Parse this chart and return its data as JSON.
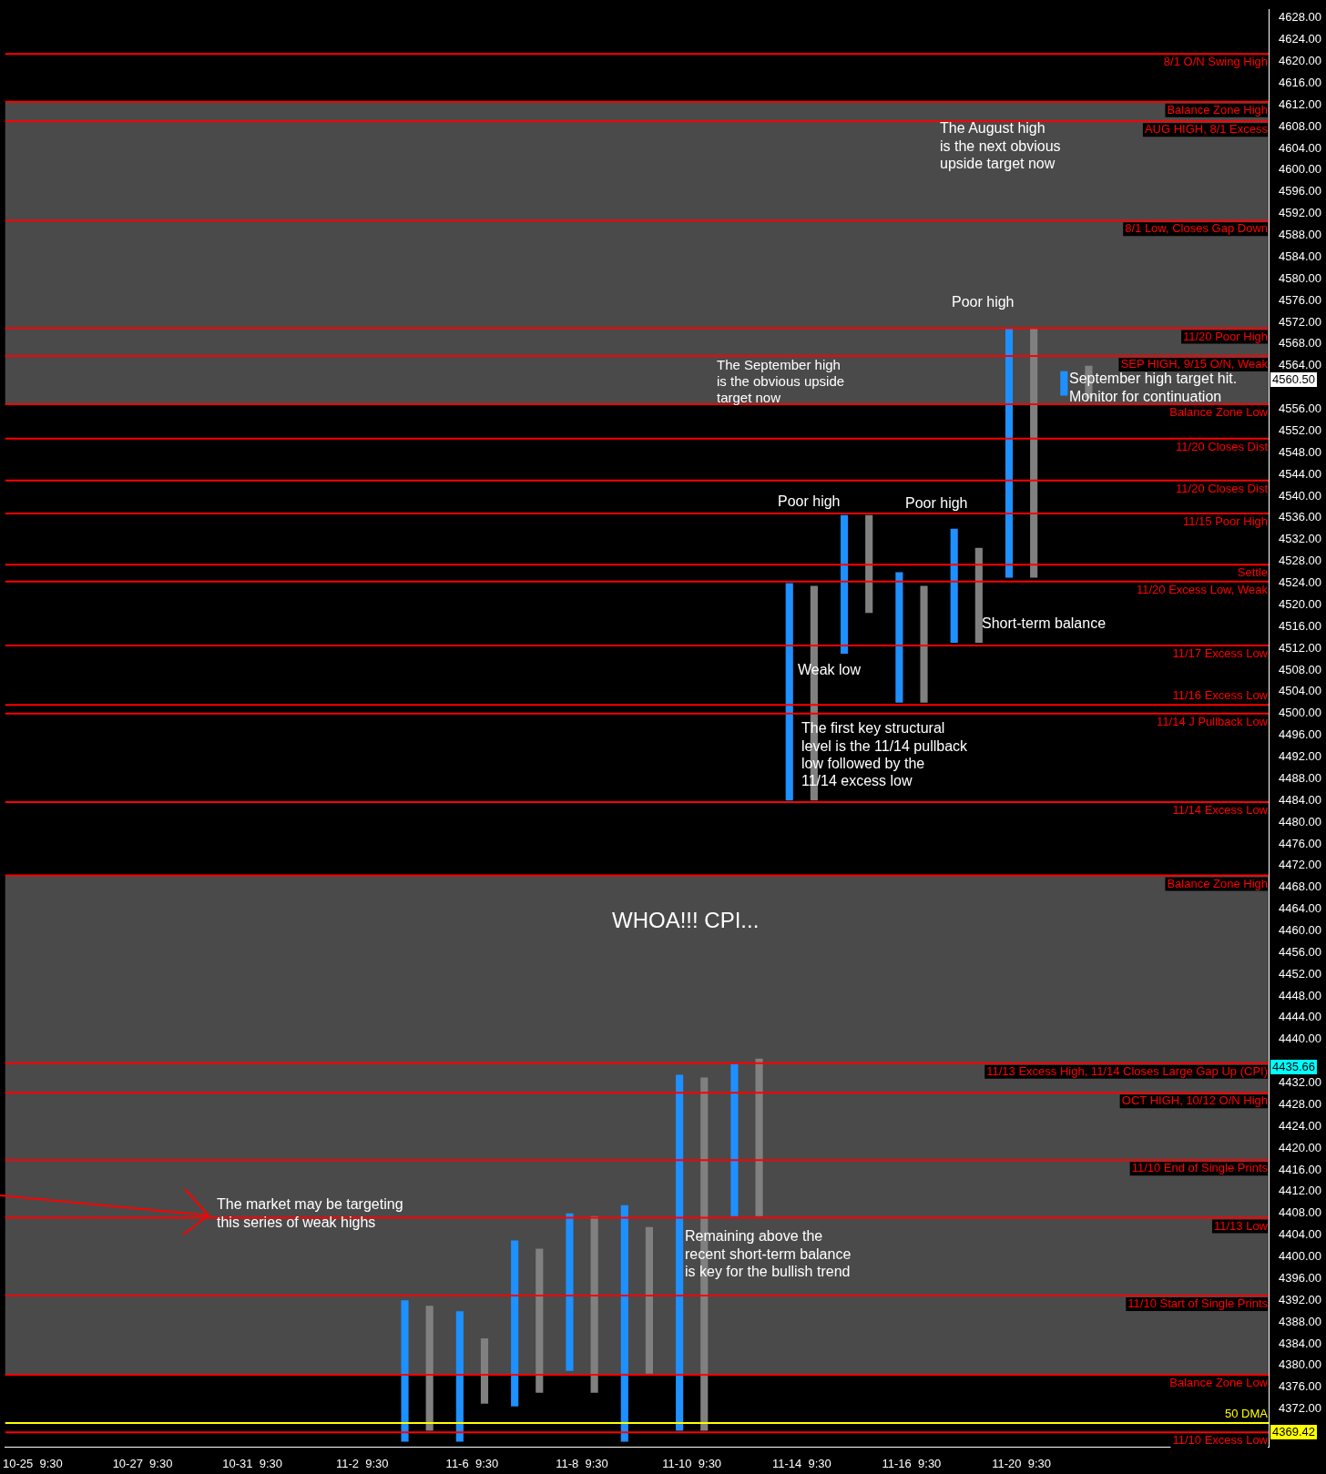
{
  "chart_data": {
    "type": "bar",
    "categories": [
      "10-25  9:30",
      null,
      "10-27  9:30",
      null,
      "10-31  9:30",
      null,
      "11-2  9:30",
      null,
      "11-6  9:30",
      null,
      "11-8  9:30",
      null,
      "11-10  9:30",
      null,
      "11-14  9:30",
      null,
      "11-16  9:30",
      null,
      "11-20  9:30",
      null,
      null,
      null,
      null
    ],
    "series": [
      {
        "color": "#1e90ff",
        "base": [
          null,
          null,
          null,
          null,
          null,
          null,
          null,
          4366,
          4366,
          4372.5,
          4379,
          4366,
          4368,
          4407.5,
          4484,
          4511,
          4502,
          4513,
          4525,
          4558.5,
          null,
          null,
          null
        ],
        "values": [
          null,
          null,
          null,
          null,
          null,
          null,
          null,
          26,
          24,
          30.5,
          29,
          43.5,
          65.5,
          28,
          40,
          25.5,
          24,
          21,
          46,
          4.5,
          null,
          null,
          null
        ]
      },
      {
        "color": "#808080",
        "base": [
          null,
          null,
          null,
          null,
          null,
          null,
          null,
          4368,
          4373,
          4375,
          4375,
          4378.5,
          4368,
          4407.5,
          4484,
          4518.5,
          4502,
          4513,
          4525,
          4558,
          null,
          null,
          null
        ],
        "values": [
          null,
          null,
          null,
          null,
          null,
          null,
          null,
          23,
          12,
          26.5,
          32.5,
          27,
          65,
          29,
          39.5,
          18,
          21.5,
          17.5,
          46,
          6,
          null,
          null,
          null
        ]
      }
    ],
    "ylim": [
      4365,
      4629.5
    ],
    "yticks": [
      {
        "value": 4372,
        "label": "4372.00"
      },
      {
        "value": 4376,
        "label": "4376.00"
      },
      {
        "value": 4380,
        "label": "4380.00"
      },
      {
        "value": 4384,
        "label": "4384.00"
      },
      {
        "value": 4388,
        "label": "4388.00"
      },
      {
        "value": 4392,
        "label": "4392.00"
      },
      {
        "value": 4396,
        "label": "4396.00"
      },
      {
        "value": 4400,
        "label": "4400.00"
      },
      {
        "value": 4404,
        "label": "4404.00"
      },
      {
        "value": 4408,
        "label": "4408.00"
      },
      {
        "value": 4412,
        "label": "4412.00"
      },
      {
        "value": 4416,
        "label": "4416.00"
      },
      {
        "value": 4420,
        "label": "4420.00"
      },
      {
        "value": 4424,
        "label": "4424.00"
      },
      {
        "value": 4428,
        "label": "4428.00"
      },
      {
        "value": 4432,
        "label": "4432.00"
      },
      {
        "value": 4440,
        "label": "4440.00"
      },
      {
        "value": 4444,
        "label": "4444.00"
      },
      {
        "value": 4448,
        "label": "4448.00"
      },
      {
        "value": 4452,
        "label": "4452.00"
      },
      {
        "value": 4456,
        "label": "4456.00"
      },
      {
        "value": 4460,
        "label": "4460.00"
      },
      {
        "value": 4464,
        "label": "4464.00"
      },
      {
        "value": 4468,
        "label": "4468.00"
      },
      {
        "value": 4472,
        "label": "4472.00"
      },
      {
        "value": 4476,
        "label": "4476.00"
      },
      {
        "value": 4480,
        "label": "4480.00"
      },
      {
        "value": 4484,
        "label": "4484.00"
      },
      {
        "value": 4488,
        "label": "4488.00"
      },
      {
        "value": 4492,
        "label": "4492.00"
      },
      {
        "value": 4496,
        "label": "4496.00"
      },
      {
        "value": 4500,
        "label": "4500.00"
      },
      {
        "value": 4504,
        "label": "4504.00"
      },
      {
        "value": 4508,
        "label": "4508.00"
      },
      {
        "value": 4512,
        "label": "4512.00"
      },
      {
        "value": 4516,
        "label": "4516.00"
      },
      {
        "value": 4520,
        "label": "4520.00"
      },
      {
        "value": 4524,
        "label": "4524.00"
      },
      {
        "value": 4528,
        "label": "4528.00"
      },
      {
        "value": 4532,
        "label": "4532.00"
      },
      {
        "value": 4536,
        "label": "4536.00"
      },
      {
        "value": 4540,
        "label": "4540.00"
      },
      {
        "value": 4544,
        "label": "4544.00"
      },
      {
        "value": 4548,
        "label": "4548.00"
      },
      {
        "value": 4552,
        "label": "4552.00"
      },
      {
        "value": 4556,
        "label": "4556.00"
      },
      {
        "value": 4564,
        "label": "4564.00"
      },
      {
        "value": 4568,
        "label": "4568.00"
      },
      {
        "value": 4572,
        "label": "4572.00"
      },
      {
        "value": 4576,
        "label": "4576.00"
      },
      {
        "value": 4580,
        "label": "4580.00"
      },
      {
        "value": 4584,
        "label": "4584.00"
      },
      {
        "value": 4588,
        "label": "4588.00"
      },
      {
        "value": 4592,
        "label": "4592.00"
      },
      {
        "value": 4596,
        "label": "4596.00"
      },
      {
        "value": 4600,
        "label": "4600.00"
      },
      {
        "value": 4604,
        "label": "4604.00"
      },
      {
        "value": 4608,
        "label": "4608.00"
      },
      {
        "value": 4612,
        "label": "4612.00"
      },
      {
        "value": 4616,
        "label": "4616.00"
      },
      {
        "value": 4620,
        "label": "4620.00"
      },
      {
        "value": 4624,
        "label": "4624.00"
      },
      {
        "value": 4628,
        "label": "4628.00"
      }
    ],
    "bands": [
      {
        "axis": "y",
        "from": 4556.9,
        "to": 4612.6,
        "color": "#4a4a4a"
      },
      {
        "axis": "y",
        "from": 4378.3,
        "to": 4470.2,
        "color": "#4a4a4a"
      }
    ],
    "ref_lines": [
      {
        "axis": "y",
        "value": 4621.4,
        "label": "8/1 O/N Swing High",
        "color": "#ff0000"
      },
      {
        "axis": "y",
        "value": 4612.6,
        "label": "Balance Zone High",
        "color": "#ff0000"
      },
      {
        "axis": "y",
        "value": 4609,
        "label": "AUG HIGH, 8/1 Excess",
        "color": "#ff0000"
      },
      {
        "axis": "y",
        "value": 4590.7,
        "label": "8/1 Low, Closes Gap Down",
        "color": "#ff0000"
      },
      {
        "axis": "y",
        "value": 4570.9,
        "label": "11/20 Poor High",
        "color": "#ff0000"
      },
      {
        "axis": "y",
        "value": 4565.8,
        "label": "SEP HIGH, 9/15 O/N, Weak",
        "color": "#ff0000"
      },
      {
        "axis": "y",
        "value": 4556.9,
        "label": "Balance Zone Low",
        "color": "#ff0000"
      },
      {
        "axis": "y",
        "value": 4550.6,
        "label": "11/20 Closes Dist",
        "color": "#ff0000"
      },
      {
        "axis": "y",
        "value": 4542.9,
        "label": "11/20 Closes Dist",
        "color": "#ff0000"
      },
      {
        "axis": "y",
        "value": 4536.8,
        "label": "11/15 Poor High",
        "color": "#ff0000"
      },
      {
        "axis": "y",
        "value": 4527.4,
        "label": "Settle",
        "color": "#ff0000"
      },
      {
        "axis": "y",
        "value": 4524.3,
        "label": "11/20 Excess Low, Weak",
        "color": "#ff0000"
      },
      {
        "axis": "y",
        "value": 4512.5,
        "label": "11/17 Excess Low",
        "color": "#ff0000"
      },
      {
        "axis": "y",
        "value": 4501.6,
        "label": "11/16 Excess Low",
        "color": "#ff0000"
      },
      {
        "axis": "y",
        "value": 4500,
        "label": "11/14 J Pullback Low",
        "color": "#ff0000"
      },
      {
        "axis": "y",
        "value": 4483.7,
        "label": "11/14 Excess Low",
        "color": "#ff0000"
      },
      {
        "axis": "y",
        "value": 4470.2,
        "label": "Balance Zone High",
        "color": "#ff0000"
      },
      {
        "axis": "y",
        "value": 4435.66,
        "label": "11/13 Excess High, 11/14 Closes Large Gap Up (CPI)",
        "color": "#ff0000"
      },
      {
        "axis": "y",
        "value": 4430.2,
        "label": "OCT HIGH, 10/12 O/N High",
        "color": "#ff0000"
      },
      {
        "axis": "y",
        "value": 4417.8,
        "label": "11/10 End of Single Prints",
        "color": "#ff0000"
      },
      {
        "axis": "y",
        "value": 4407.2,
        "label": "11/13 Low",
        "color": "#ff0000"
      },
      {
        "axis": "y",
        "value": 4392.9,
        "label": "11/10 Start of Single Prints",
        "color": "#ff0000"
      },
      {
        "axis": "y",
        "value": 4378.3,
        "label": "Balance Zone Low",
        "color": "#ff0000"
      },
      {
        "axis": "y",
        "value": 4369.42,
        "label": "50 DMA",
        "color": "#ffff00"
      },
      {
        "axis": "y",
        "value": 4367.7,
        "label": "11/10 Excess Low",
        "color": "#ff0000"
      }
    ],
    "annotations": [
      "The August high\nis the next obvious\nupside target now",
      "Poor high",
      "The September high\nis the obvious upside\ntarget now",
      "September high target hit.\nMonitor for continuation",
      "Poor high",
      "Poor high",
      "Short-term balance",
      "Weak low",
      "The first key structural\nlevel is the 11/14 pullback\nlow followed by the\n11/14 excess low",
      "WHOA!!! CPI...",
      "The market may be targeting\nthis series of weak highs",
      "Remaining above the\nrecent short-term balance\nis key for the bullish trend",
      "4560.50",
      "4435.66",
      "4369.42"
    ]
  }
}
